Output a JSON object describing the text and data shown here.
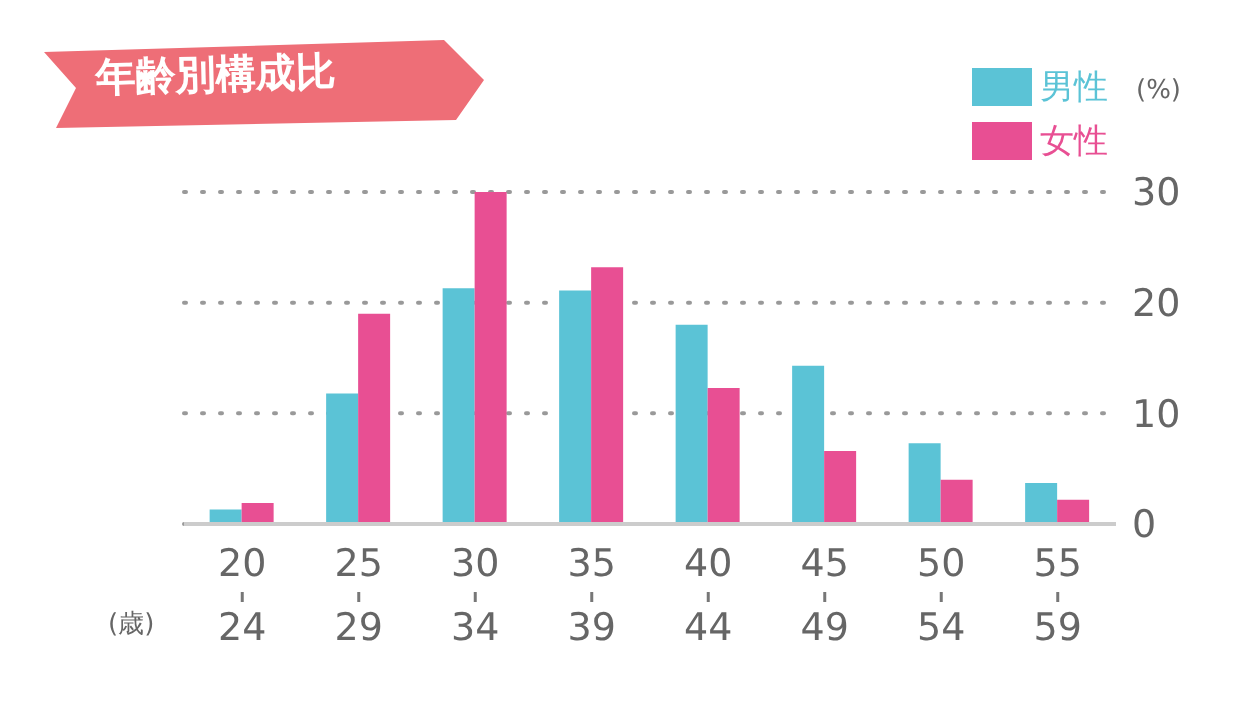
{
  "chart_data": {
    "type": "bar",
    "title": "年齢別構成比",
    "xlabel": "(歳)",
    "ylabel": "(%)",
    "categories": [
      "20\n24",
      "25\n29",
      "30\n34",
      "35\n39",
      "40\n44",
      "45\n49",
      "50\n54",
      "55\n59"
    ],
    "series": [
      {
        "name": "男性",
        "color": "#5bc3d6",
        "values": [
          1.3,
          11.8,
          21.3,
          21.1,
          18.0,
          14.3,
          7.3,
          3.7
        ]
      },
      {
        "name": "女性",
        "color": "#e84f93",
        "values": [
          1.9,
          19.0,
          30.0,
          23.2,
          12.3,
          6.6,
          4.0,
          2.2
        ]
      }
    ],
    "ylim": [
      0,
      30
    ],
    "yticks": [
      0,
      10,
      20,
      30
    ],
    "grid": "y",
    "legend": "top right"
  }
}
